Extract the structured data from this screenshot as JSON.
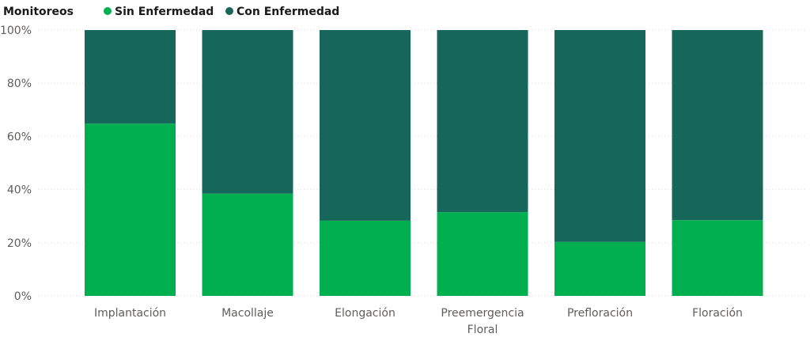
{
  "chart_data": {
    "type": "bar",
    "stacked": "percent",
    "legend": {
      "title": "Monitoreos",
      "position": "top-left"
    },
    "categories": [
      [
        "Implantación"
      ],
      [
        "Macollaje"
      ],
      [
        "Elongación"
      ],
      [
        "Preemergencia",
        "Floral"
      ],
      [
        "Prefloración"
      ],
      [
        "Floración"
      ]
    ],
    "series": [
      {
        "name": "Sin Enfermedad",
        "color": "#00b050",
        "values": [
          64.8,
          38.5,
          28.3,
          31.5,
          20.3,
          28.5
        ]
      },
      {
        "name": "Con Enfermedad",
        "color": "#17665a",
        "values": [
          35.2,
          61.5,
          71.7,
          68.5,
          79.7,
          71.5
        ]
      }
    ],
    "ylim": [
      0,
      100
    ],
    "yticks": [
      {
        "value": 0,
        "label": "0%"
      },
      {
        "value": 20,
        "label": "20%"
      },
      {
        "value": 40,
        "label": "40%"
      },
      {
        "value": 60,
        "label": "60%"
      },
      {
        "value": 80,
        "label": "80%"
      },
      {
        "value": 100,
        "label": "100%"
      }
    ],
    "grid": true,
    "title": "",
    "xlabel": "",
    "ylabel": ""
  }
}
